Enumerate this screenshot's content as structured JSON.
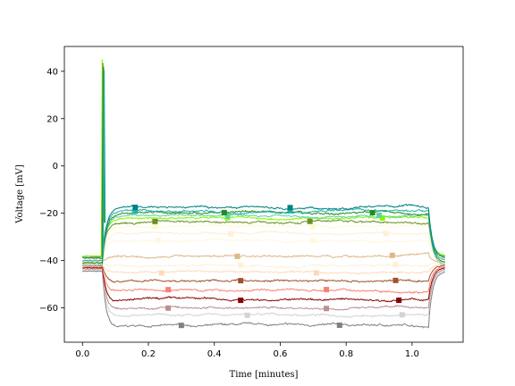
{
  "chart_data": {
    "type": "line",
    "title": "",
    "xlabel": "Time [minutes]",
    "ylabel": "Voltage [mV]",
    "xlim": [
      -0.055,
      1.155
    ],
    "ylim": [
      -74.5,
      50.5
    ],
    "xticks": [
      0.0,
      0.2,
      0.4,
      0.6,
      0.8,
      1.0
    ],
    "xtick_labels": [
      "0.0",
      "0.2",
      "0.4",
      "0.6",
      "0.8",
      "1.0"
    ],
    "yticks": [
      -60,
      -40,
      -20,
      0,
      20,
      40
    ],
    "ytick_labels": [
      "−60",
      "−40",
      "−20",
      "0",
      "20",
      "40"
    ],
    "grid": false,
    "legend": "none",
    "stimulus_window": [
      0.06,
      1.05
    ],
    "series": [
      {
        "color": "#808080",
        "baseline": -44.5,
        "plateau": -67.5,
        "markers": [
          0.3,
          0.78
        ]
      },
      {
        "color": "#d3d3d3",
        "baseline": -44.0,
        "plateau": -63.0,
        "markers": [
          0.5,
          0.97
        ]
      },
      {
        "color": "#bc8f8f",
        "baseline": -43.5,
        "plateau": -60.0,
        "markers": [
          0.26,
          0.74
        ]
      },
      {
        "color": "#8b0000",
        "baseline": -43.0,
        "plateau": -56.5,
        "markers": [
          0.48,
          0.96
        ]
      },
      {
        "color": "#fa8072",
        "baseline": -42.5,
        "plateau": -52.5,
        "markers": [
          0.26,
          0.74
        ]
      },
      {
        "color": "#a0522d",
        "baseline": -42.0,
        "plateau": -48.5,
        "markers": [
          0.48,
          0.95
        ]
      },
      {
        "color": "#ffdab9",
        "baseline": -41.5,
        "plateau": -45.0,
        "markers": [
          0.24,
          0.71
        ]
      },
      {
        "color": "#fff0d5",
        "baseline": -41.0,
        "plateau": -42.0,
        "markers": [
          0.48,
          0.95
        ]
      },
      {
        "color": "#deb887",
        "baseline": -40.5,
        "plateau": -38.0,
        "markers": [
          0.47,
          0.94
        ]
      },
      {
        "color": "#fff8dc",
        "baseline": -40.0,
        "plateau": -31.5,
        "markers": [
          0.23,
          0.7
        ]
      },
      {
        "color": "#ffefd5",
        "baseline": -39.5,
        "plateau": -28.5,
        "markers": [
          0.45,
          0.92
        ]
      },
      {
        "color": "#fffacd",
        "baseline": -39.0,
        "plateau": -25.5,
        "markers": [
          0.22,
          0.7
        ]
      },
      {
        "color": "#6b8e23",
        "baseline": -38.5,
        "plateau": -23.5,
        "markers": [
          0.22,
          0.69
        ]
      },
      {
        "color": "#7cfc00",
        "baseline": -38.0,
        "plateau": -22.0,
        "markers": [
          0.44,
          0.91
        ]
      },
      {
        "color": "#66cdaa",
        "baseline": -42.0,
        "plateau": -21.0,
        "markers": [
          0.44,
          0.9
        ]
      },
      {
        "color": "#228b22",
        "baseline": -41.0,
        "plateau": -20.0,
        "markers": [
          0.43,
          0.88
        ]
      },
      {
        "color": "#20b2aa",
        "baseline": -40.0,
        "plateau": -19.0,
        "markers": [
          0.16,
          0.63
        ]
      },
      {
        "color": "#008080",
        "baseline": -39.0,
        "plateau": -17.5,
        "markers": [
          0.16,
          0.63
        ]
      }
    ],
    "spike": {
      "x": 0.06,
      "peak": 45,
      "colors": [
        "#7cfc00",
        "#6b8e23",
        "#228b22",
        "#20b2aa"
      ]
    },
    "sag_labels": {
      "nadir": -37.0,
      "color": "#a0522d"
    }
  }
}
